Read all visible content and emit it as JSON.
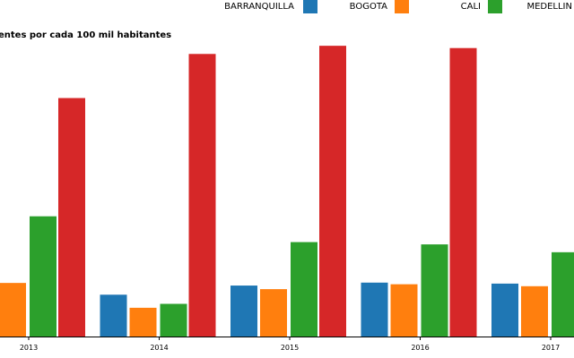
{
  "chart_data": {
    "type": "bar",
    "title": "",
    "subtitle": "entes por cada 100 mil habitantes",
    "xlabel": "",
    "ylabel": "",
    "categories": [
      "2013",
      "2014",
      "2015",
      "2016",
      "2017"
    ],
    "series": [
      {
        "name": "BARRANQUILLA",
        "color": "#1f77b4",
        "values": [
          null,
          12.8,
          15.6,
          16.5,
          16.2
        ]
      },
      {
        "name": "BOGOTA",
        "color": "#ff7f0e",
        "values": [
          16.4,
          8.8,
          14.5,
          16.0,
          15.4
        ]
      },
      {
        "name": "CALI",
        "color": "#2ca02c",
        "values": [
          36.8,
          10.0,
          28.9,
          28.2,
          25.8
        ]
      },
      {
        "name": "MEDELLIN",
        "color": "#d62728",
        "values": [
          73.0,
          86.5,
          89.0,
          88.3,
          null
        ]
      }
    ],
    "ylim": [
      0,
      95
    ],
    "grid": false,
    "legend_position": "top-right"
  }
}
